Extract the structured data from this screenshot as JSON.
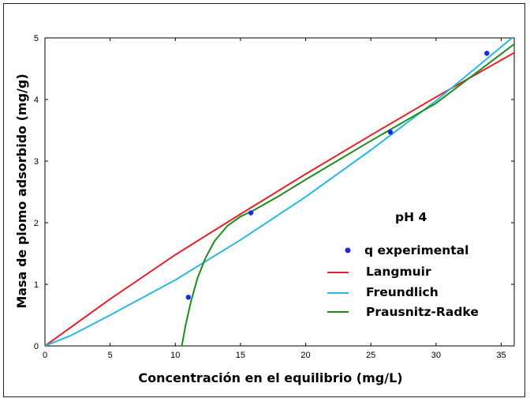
{
  "chart_data": {
    "type": "line",
    "xlabel": "Concentración en el equilibrio (mg/L)",
    "ylabel": "Masa de plomo adsorbido (mg/g)",
    "xlim": [
      0,
      36
    ],
    "ylim": [
      0,
      5
    ],
    "x_ticks": [
      "0",
      "5",
      "10",
      "15",
      "20",
      "25",
      "30",
      "35"
    ],
    "y_ticks": [
      "0",
      "1",
      "2",
      "3",
      "4",
      "5"
    ],
    "grid": false,
    "annotation": "pH 4",
    "legend_position": "right-center",
    "experimental": {
      "name": "q experimental",
      "color": "#1a2be0",
      "x": [
        11.0,
        15.8,
        26.5,
        33.9
      ],
      "y": [
        0.79,
        2.16,
        3.47,
        4.75
      ]
    },
    "series": [
      {
        "name": "Langmuir",
        "color": "#e8202a",
        "x": [
          0,
          5,
          10,
          15,
          20,
          25,
          30,
          36
        ],
        "y": [
          0,
          0.76,
          1.48,
          2.14,
          2.79,
          3.42,
          4.04,
          4.76
        ]
      },
      {
        "name": "Freundlich",
        "color": "#2ab8e0",
        "x": [
          0,
          2,
          5,
          10,
          15,
          20,
          25,
          30,
          33.9,
          36
        ],
        "y": [
          0,
          0.17,
          0.5,
          1.07,
          1.72,
          2.42,
          3.18,
          3.98,
          4.66,
          5.03
        ]
      },
      {
        "name": "Prausnitz-Radke",
        "color": "#1d8c1d",
        "x": [
          10.5,
          10.8,
          11.2,
          11.7,
          12.3,
          13.0,
          14.0,
          15.0,
          16.0,
          18.0,
          20.0,
          25.0,
          30.0,
          36.0
        ],
        "y": [
          0,
          0.35,
          0.72,
          1.1,
          1.42,
          1.7,
          1.95,
          2.1,
          2.2,
          2.44,
          2.7,
          3.33,
          3.94,
          4.9
        ]
      }
    ]
  }
}
